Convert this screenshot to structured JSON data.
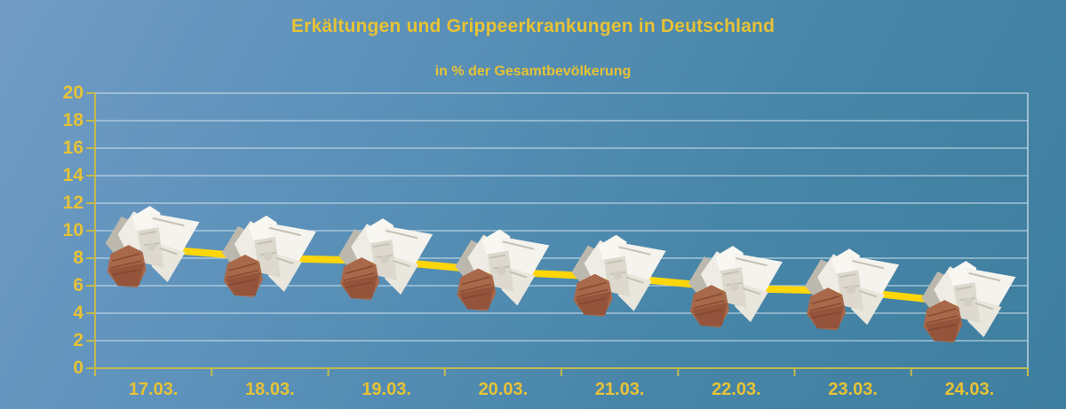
{
  "title": "Erkältungen und Grippeerkrankungen in Deutschland",
  "subtitle": "in % der Gesamtbevölkerung",
  "marker_icon": "crumpled-tissue-in-hand",
  "colors": {
    "background_top_left": "#719bc4",
    "background_bottom_right": "#3e7e9e",
    "text_gold": "#e7c235",
    "line_yellow": "#ffd60a",
    "axis_olive": "#c3b94e",
    "gridline": "#cfe2ec",
    "tissue_white": "#f5f3ed",
    "hand_skin": "#a8684a"
  },
  "chart_data": {
    "type": "line",
    "title": "Erkältungen und Grippeerkrankungen in Deutschland",
    "subtitle": "in % der Gesamtbevölkerung",
    "categories": [
      "17.03.",
      "18.03.",
      "19.03.",
      "20.03.",
      "21.03.",
      "22.03.",
      "23.03.",
      "24.03."
    ],
    "values": [
      8.7,
      8.0,
      7.8,
      7.0,
      6.6,
      5.8,
      5.6,
      4.7
    ],
    "series_name": "Erkältungen und Grippeerkrankungen",
    "unit": "% der Gesamtbevölkerung",
    "xlabel": "",
    "ylabel": "",
    "ylim": [
      0,
      20
    ],
    "yticks": [
      0,
      2,
      4,
      6,
      8,
      10,
      12,
      14,
      16,
      18,
      20
    ],
    "grid": true,
    "legend": false,
    "marker": "crumpled-tissue-in-hand-photo"
  }
}
